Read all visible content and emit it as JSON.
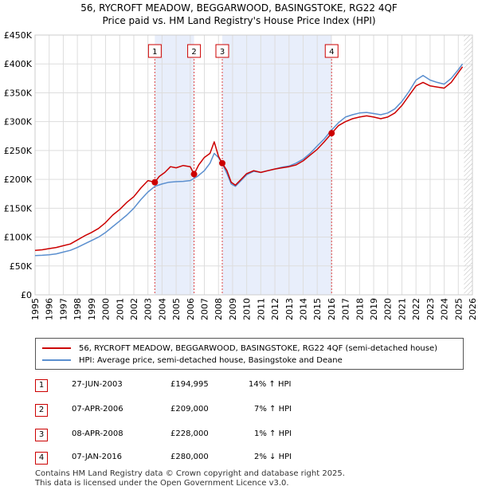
{
  "chart_data": {
    "type": "line",
    "title": "56, RYCROFT MEADOW, BEGGARWOOD, BASINGSTOKE, RG22 4QF",
    "subtitle": "Price paid vs. HM Land Registry's House Price Index (HPI)",
    "xlabel": "",
    "ylabel": "",
    "xlim": [
      1995,
      2026
    ],
    "ylim": [
      0,
      450000
    ],
    "x_ticks": [
      "1995",
      "1996",
      "1997",
      "1998",
      "1999",
      "2000",
      "2001",
      "2002",
      "2003",
      "2004",
      "2005",
      "2006",
      "2007",
      "2008",
      "2009",
      "2010",
      "2011",
      "2012",
      "2013",
      "2014",
      "2015",
      "2016",
      "2017",
      "2018",
      "2019",
      "2020",
      "2021",
      "2022",
      "2023",
      "2024",
      "2025",
      "2026"
    ],
    "y_ticks": [
      {
        "value": 0,
        "label": "£0"
      },
      {
        "value": 50000,
        "label": "£50K"
      },
      {
        "value": 100000,
        "label": "£100K"
      },
      {
        "value": 150000,
        "label": "£150K"
      },
      {
        "value": 200000,
        "label": "£200K"
      },
      {
        "value": 250000,
        "label": "£250K"
      },
      {
        "value": 300000,
        "label": "£300K"
      },
      {
        "value": 350000,
        "label": "£350K"
      },
      {
        "value": 400000,
        "label": "£400K"
      },
      {
        "value": 450000,
        "label": "£450K"
      }
    ],
    "grid": true,
    "series": [
      {
        "name": "56, RYCROFT MEADOW, BEGGARWOOD, BASINGSTOKE, RG22 4QF (semi-detached house)",
        "color": "#cc0000",
        "x": [
          1995.0,
          1995.5,
          1996.0,
          1996.5,
          1997.0,
          1997.5,
          1998.0,
          1998.5,
          1999.0,
          1999.5,
          2000.0,
          2000.5,
          2001.0,
          2001.5,
          2002.0,
          2002.5,
          2003.0,
          2003.49,
          2003.8,
          2004.2,
          2004.6,
          2005.0,
          2005.5,
          2006.0,
          2006.27,
          2006.6,
          2007.0,
          2007.4,
          2007.7,
          2008.0,
          2008.27,
          2008.6,
          2008.9,
          2009.2,
          2009.6,
          2010.0,
          2010.5,
          2011.0,
          2011.5,
          2012.0,
          2012.5,
          2013.0,
          2013.5,
          2014.0,
          2014.5,
          2015.0,
          2015.5,
          2016.02,
          2016.5,
          2017.0,
          2017.5,
          2018.0,
          2018.5,
          2019.0,
          2019.5,
          2020.0,
          2020.5,
          2021.0,
          2021.5,
          2022.0,
          2022.5,
          2023.0,
          2023.5,
          2024.0,
          2024.5,
          2025.0,
          2025.3
        ],
        "values": [
          77000,
          78000,
          80000,
          82000,
          85000,
          88000,
          95000,
          102000,
          108000,
          115000,
          125000,
          138000,
          148000,
          160000,
          170000,
          185000,
          198000,
          194995,
          205000,
          212000,
          222000,
          220000,
          224000,
          222000,
          209000,
          225000,
          238000,
          245000,
          265000,
          240000,
          228000,
          215000,
          195000,
          190000,
          200000,
          210000,
          215000,
          212000,
          215000,
          218000,
          220000,
          222000,
          225000,
          232000,
          242000,
          252000,
          265000,
          280000,
          293000,
          300000,
          305000,
          308000,
          310000,
          308000,
          305000,
          308000,
          315000,
          328000,
          345000,
          362000,
          368000,
          362000,
          360000,
          358000,
          368000,
          385000,
          395000
        ]
      },
      {
        "name": "HPI: Average price, semi-detached house, Basingstoke and Deane",
        "color": "#5b8fcf",
        "x": [
          1995.0,
          1995.5,
          1996.0,
          1996.5,
          1997.0,
          1997.5,
          1998.0,
          1998.5,
          1999.0,
          1999.5,
          2000.0,
          2000.5,
          2001.0,
          2001.5,
          2002.0,
          2002.5,
          2003.0,
          2003.5,
          2004.0,
          2004.5,
          2005.0,
          2005.5,
          2006.0,
          2006.5,
          2007.0,
          2007.4,
          2007.7,
          2008.0,
          2008.3,
          2008.6,
          2008.9,
          2009.2,
          2009.6,
          2010.0,
          2010.5,
          2011.0,
          2011.5,
          2012.0,
          2012.5,
          2013.0,
          2013.5,
          2014.0,
          2014.5,
          2015.0,
          2015.5,
          2016.0,
          2016.5,
          2017.0,
          2017.5,
          2018.0,
          2018.5,
          2019.0,
          2019.5,
          2020.0,
          2020.5,
          2021.0,
          2021.5,
          2022.0,
          2022.5,
          2023.0,
          2023.5,
          2024.0,
          2024.5,
          2025.0,
          2025.3
        ],
        "values": [
          68000,
          68500,
          69500,
          71000,
          74000,
          77000,
          82000,
          88000,
          94000,
          100000,
          108000,
          118000,
          128000,
          138000,
          150000,
          165000,
          178000,
          188000,
          192000,
          195000,
          196000,
          196500,
          198000,
          205000,
          215000,
          228000,
          245000,
          238000,
          226000,
          210000,
          192000,
          188000,
          198000,
          208000,
          214000,
          212000,
          215000,
          218000,
          221000,
          223000,
          228000,
          235000,
          245000,
          258000,
          270000,
          285000,
          298000,
          308000,
          312000,
          315000,
          316000,
          314000,
          312000,
          315000,
          322000,
          335000,
          352000,
          372000,
          380000,
          372000,
          368000,
          365000,
          375000,
          390000,
          400000
        ]
      }
    ],
    "annotations": [
      {
        "label": "1",
        "x": 2003.49,
        "y": 194995
      },
      {
        "label": "2",
        "x": 2006.27,
        "y": 209000
      },
      {
        "label": "3",
        "x": 2008.27,
        "y": 228000
      },
      {
        "label": "4",
        "x": 2016.02,
        "y": 280000
      }
    ],
    "shaded_ranges": [
      [
        2003.49,
        2006.27
      ],
      [
        2008.27,
        2016.02
      ]
    ],
    "future_hatch_from": 2025.4
  },
  "legend": {
    "property": "56, RYCROFT MEADOW, BEGGARWOOD, BASINGSTOKE, RG22 4QF (semi-detached house)",
    "hpi": "HPI: Average price, semi-detached house, Basingstoke and Deane",
    "property_color": "#cc0000",
    "hpi_color": "#5b8fcf"
  },
  "transactions": [
    {
      "num": "1",
      "date": "27-JUN-2003",
      "price": "£194,995",
      "hpi": "14% ↑ HPI"
    },
    {
      "num": "2",
      "date": "07-APR-2006",
      "price": "£209,000",
      "hpi": "7% ↑ HPI"
    },
    {
      "num": "3",
      "date": "08-APR-2008",
      "price": "£228,000",
      "hpi": "1% ↑ HPI"
    },
    {
      "num": "4",
      "date": "07-JAN-2016",
      "price": "£280,000",
      "hpi": "2% ↓ HPI"
    }
  ],
  "footer": {
    "line1": "Contains HM Land Registry data © Crown copyright and database right 2025.",
    "line2": "This data is licensed under the Open Government Licence v3.0."
  }
}
